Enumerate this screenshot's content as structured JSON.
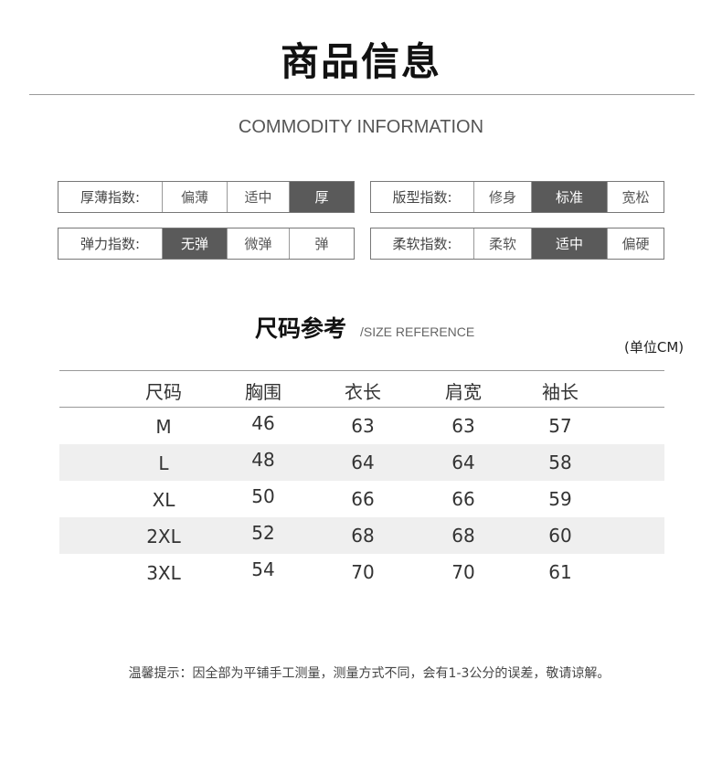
{
  "title": "商品信息",
  "subtitle": "COMMODITY INFORMATION",
  "indices": [
    {
      "label": "厚薄指数:",
      "options": [
        "偏薄",
        "适中",
        "厚"
      ],
      "selected": 2
    },
    {
      "label": "版型指数:",
      "options": [
        "修身",
        "标准",
        "宽松"
      ],
      "selected": 1
    },
    {
      "label": "弹力指数:",
      "options": [
        "无弹",
        "微弹",
        "弹"
      ],
      "selected": 0
    },
    {
      "label": "柔软指数:",
      "options": [
        "柔软",
        "适中",
        "偏硬"
      ],
      "selected": 1
    }
  ],
  "selected_color": "#5a5a5a",
  "size_reference": {
    "title": "尺码参考",
    "subtitle": "/SIZE REFERENCE",
    "unit": "(单位CM)",
    "headers": [
      "尺码",
      "胸围",
      "衣长",
      "肩宽",
      "袖长"
    ],
    "rows": [
      [
        "M",
        "46",
        "63",
        "63",
        "57"
      ],
      [
        "L",
        "48",
        "64",
        "64",
        "58"
      ],
      [
        "XL",
        "50",
        "66",
        "66",
        "59"
      ],
      [
        "2XL",
        "52",
        "68",
        "68",
        "60"
      ],
      [
        "3XL",
        "54",
        "70",
        "70",
        "61"
      ]
    ]
  },
  "note": "温馨提示：因全部为平铺手工测量，测量方式不同，会有1-3公分的误差，敬请谅解。"
}
